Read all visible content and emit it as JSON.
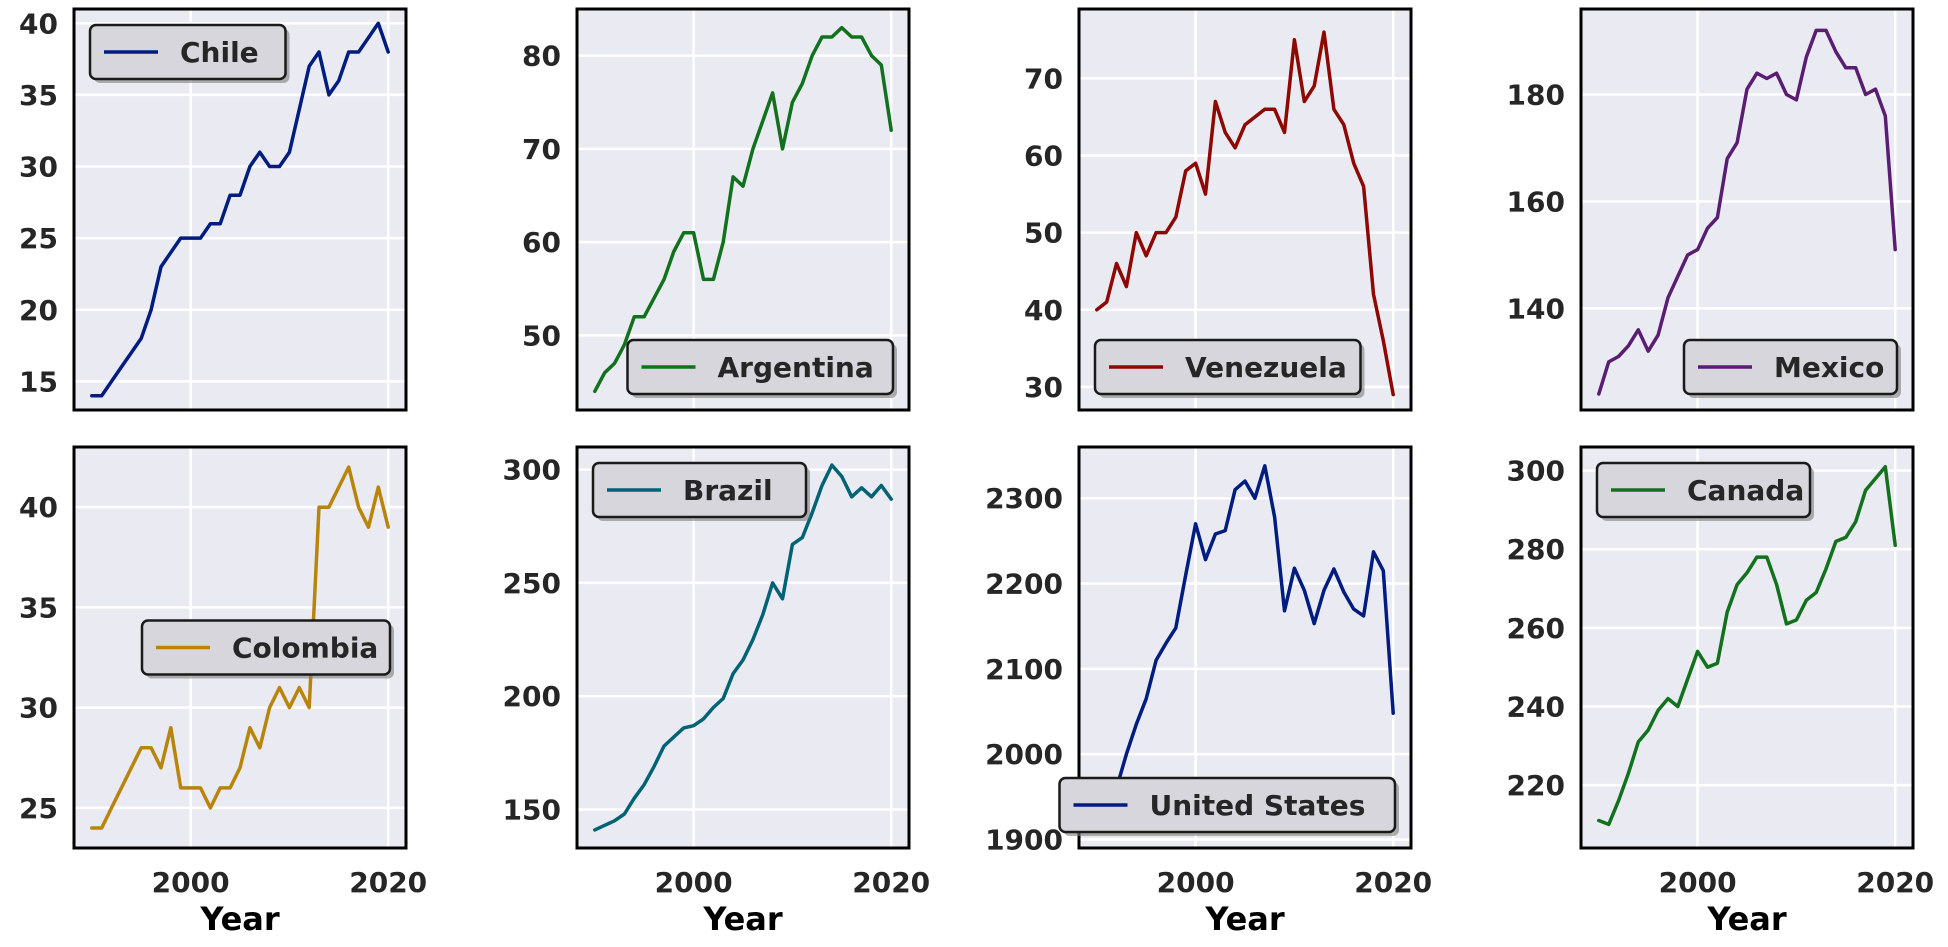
{
  "chart_data": [
    {
      "type": "line",
      "series": [
        {
          "name": "Chile",
          "color": "#001c7f",
          "x": [
            1990,
            1991,
            1992,
            1993,
            1994,
            1995,
            1996,
            1997,
            1998,
            1999,
            2000,
            2001,
            2002,
            2003,
            2004,
            2005,
            2006,
            2007,
            2008,
            2009,
            2010,
            2011,
            2012,
            2013,
            2014,
            2015,
            2016,
            2017,
            2018,
            2019,
            2020
          ],
          "y": [
            14,
            14,
            15,
            16,
            17,
            18,
            20,
            23,
            24,
            25,
            25,
            25,
            26,
            26,
            28,
            28,
            30,
            31,
            30,
            30,
            31,
            34,
            37,
            38,
            35,
            36,
            38,
            38,
            39,
            40,
            38
          ]
        }
      ],
      "xlabel": "",
      "ylabel": "",
      "xticks": [
        2000,
        2020
      ],
      "yticks": [
        15,
        20,
        25,
        30,
        35,
        40
      ],
      "ylim": [
        13,
        41
      ],
      "legend_position": "upper-left"
    },
    {
      "type": "line",
      "series": [
        {
          "name": "Argentina",
          "color": "#12711c",
          "x": [
            1990,
            1991,
            1992,
            1993,
            1994,
            1995,
            1996,
            1997,
            1998,
            1999,
            2000,
            2001,
            2002,
            2003,
            2004,
            2005,
            2006,
            2007,
            2008,
            2009,
            2010,
            2011,
            2012,
            2013,
            2014,
            2015,
            2016,
            2017,
            2018,
            2019,
            2020
          ],
          "y": [
            44,
            46,
            47,
            49,
            52,
            52,
            54,
            56,
            59,
            61,
            61,
            56,
            56,
            60,
            67,
            66,
            70,
            73,
            76,
            70,
            75,
            77,
            80,
            82,
            82,
            83,
            82,
            82,
            80,
            79,
            72
          ]
        }
      ],
      "xlabel": "",
      "ylabel": "",
      "xticks": [
        2000,
        2020
      ],
      "yticks": [
        50,
        60,
        70,
        80
      ],
      "ylim": [
        42,
        85
      ],
      "legend_position": "lower-right"
    },
    {
      "type": "line",
      "series": [
        {
          "name": "Venezuela",
          "color": "#8c0800",
          "x": [
            1990,
            1991,
            1992,
            1993,
            1994,
            1995,
            1996,
            1997,
            1998,
            1999,
            2000,
            2001,
            2002,
            2003,
            2004,
            2005,
            2006,
            2007,
            2008,
            2009,
            2010,
            2011,
            2012,
            2013,
            2014,
            2015,
            2016,
            2017,
            2018,
            2019,
            2020
          ],
          "y": [
            40,
            41,
            46,
            43,
            50,
            47,
            50,
            50,
            52,
            58,
            59,
            55,
            67,
            63,
            61,
            64,
            65,
            66,
            66,
            63,
            75,
            67,
            69,
            76,
            66,
            64,
            59,
            56,
            42,
            36,
            29
          ]
        }
      ],
      "xlabel": "",
      "ylabel": "",
      "xticks": [
        2000,
        2020
      ],
      "yticks": [
        30,
        40,
        50,
        60,
        70
      ],
      "ylim": [
        27,
        79
      ],
      "legend_position": "lower-left"
    },
    {
      "type": "line",
      "series": [
        {
          "name": "Mexico",
          "color": "#591e71",
          "x": [
            1990,
            1991,
            1992,
            1993,
            1994,
            1995,
            1996,
            1997,
            1998,
            1999,
            2000,
            2001,
            2002,
            2003,
            2004,
            2005,
            2006,
            2007,
            2008,
            2009,
            2010,
            2011,
            2012,
            2013,
            2014,
            2015,
            2016,
            2017,
            2018,
            2019,
            2020
          ],
          "y": [
            124,
            130,
            131,
            133,
            136,
            132,
            135,
            142,
            146,
            150,
            151,
            155,
            157,
            168,
            171,
            181,
            184,
            183,
            184,
            180,
            179,
            187,
            192,
            192,
            188,
            185,
            185,
            180,
            181,
            176,
            151
          ]
        }
      ],
      "xlabel": "",
      "ylabel": "",
      "xticks": [
        2000,
        2020
      ],
      "yticks": [
        140,
        160,
        180
      ],
      "ylim": [
        121,
        196
      ],
      "legend_position": "lower-right"
    },
    {
      "type": "line",
      "series": [
        {
          "name": "Colombia",
          "color": "#b8850a",
          "x": [
            1990,
            1991,
            1992,
            1993,
            1994,
            1995,
            1996,
            1997,
            1998,
            1999,
            2000,
            2001,
            2002,
            2003,
            2004,
            2005,
            2006,
            2007,
            2008,
            2009,
            2010,
            2011,
            2012,
            2013,
            2014,
            2015,
            2016,
            2017,
            2018,
            2019,
            2020
          ],
          "y": [
            24,
            24,
            25,
            26,
            27,
            28,
            28,
            27,
            29,
            26,
            26,
            26,
            25,
            26,
            26,
            27,
            29,
            28,
            30,
            31,
            30,
            31,
            30,
            40,
            40,
            41,
            42,
            40,
            39,
            41,
            39
          ]
        }
      ],
      "xlabel": "Year",
      "ylabel": "",
      "xticks": [
        2000,
        2020
      ],
      "yticks": [
        25,
        30,
        35,
        40
      ],
      "ylim": [
        23,
        43
      ],
      "legend_position": "center-right"
    },
    {
      "type": "line",
      "series": [
        {
          "name": "Brazil",
          "color": "#006374",
          "x": [
            1990,
            1991,
            1992,
            1993,
            1994,
            1995,
            1996,
            1997,
            1998,
            1999,
            2000,
            2001,
            2002,
            2003,
            2004,
            2005,
            2006,
            2007,
            2008,
            2009,
            2010,
            2011,
            2012,
            2013,
            2014,
            2015,
            2016,
            2017,
            2018,
            2019,
            2020
          ],
          "y": [
            141,
            143,
            145,
            148,
            155,
            161,
            169,
            178,
            182,
            186,
            187,
            190,
            195,
            199,
            210,
            216,
            225,
            236,
            250,
            243,
            267,
            270,
            281,
            293,
            302,
            297,
            288,
            292,
            288,
            293,
            287
          ]
        }
      ],
      "xlabel": "Year",
      "ylabel": "",
      "xticks": [
        2000,
        2020
      ],
      "yticks": [
        150,
        200,
        250,
        300
      ],
      "ylim": [
        133,
        310
      ],
      "legend_position": "upper-left"
    },
    {
      "type": "line",
      "series": [
        {
          "name": "United States",
          "color": "#001c7f",
          "x": [
            1990,
            1991,
            1992,
            1993,
            1994,
            1995,
            1996,
            1997,
            1998,
            1999,
            2000,
            2001,
            2002,
            2003,
            2004,
            2005,
            2006,
            2007,
            2008,
            2009,
            2010,
            2011,
            2012,
            2013,
            2014,
            2015,
            2016,
            2017,
            2018,
            2019,
            2020
          ],
          "y": [
            1910,
            1930,
            1960,
            2000,
            2035,
            2065,
            2110,
            2130,
            2148,
            2210,
            2270,
            2228,
            2258,
            2262,
            2310,
            2320,
            2300,
            2338,
            2278,
            2168,
            2218,
            2192,
            2153,
            2192,
            2217,
            2190,
            2170,
            2162,
            2237,
            2215,
            2048
          ]
        }
      ],
      "xlabel": "Year",
      "ylabel": "",
      "xticks": [
        2000,
        2020
      ],
      "yticks": [
        1900,
        2000,
        2100,
        2200,
        2300
      ],
      "ylim": [
        1890,
        2360
      ],
      "legend_position": "lower-right"
    },
    {
      "type": "line",
      "series": [
        {
          "name": "Canada",
          "color": "#12711c",
          "x": [
            1990,
            1991,
            1992,
            1993,
            1994,
            1995,
            1996,
            1997,
            1998,
            1999,
            2000,
            2001,
            2002,
            2003,
            2004,
            2005,
            2006,
            2007,
            2008,
            2009,
            2010,
            2011,
            2012,
            2013,
            2014,
            2015,
            2016,
            2017,
            2018,
            2019,
            2020
          ],
          "y": [
            211,
            210,
            216,
            223,
            231,
            234,
            239,
            242,
            240,
            247,
            254,
            250,
            251,
            264,
            271,
            274,
            278,
            278,
            271,
            261,
            262,
            267,
            269,
            275,
            282,
            283,
            287,
            295,
            298,
            301,
            281
          ]
        }
      ],
      "xlabel": "Year",
      "ylabel": "",
      "xticks": [
        2000,
        2020
      ],
      "yticks": [
        220,
        240,
        260,
        280,
        300
      ],
      "ylim": [
        204,
        306
      ],
      "legend_position": "upper-left"
    }
  ]
}
